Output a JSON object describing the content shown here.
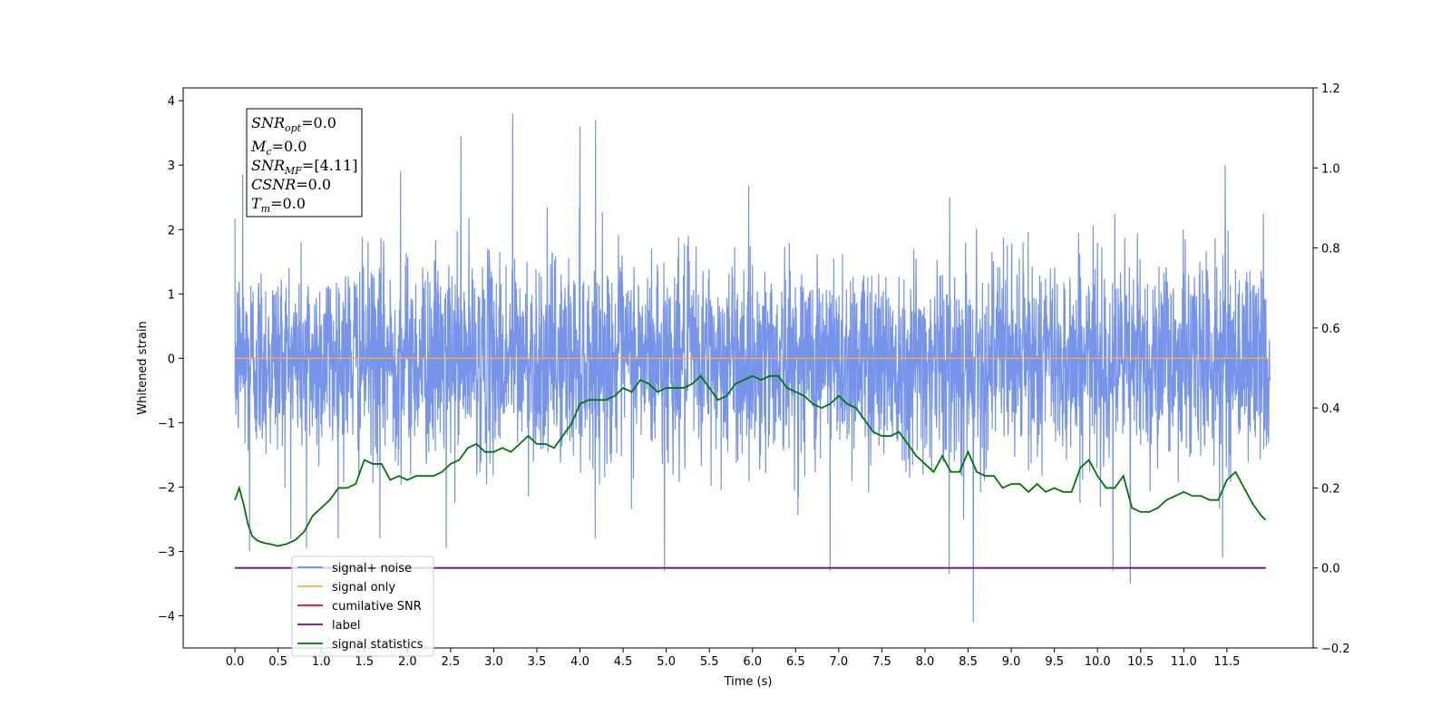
{
  "chart_data": {
    "type": "line",
    "xlabel": "Time (s)",
    "ylabel": "Whitened strain",
    "xlim": [
      -0.6,
      12.5
    ],
    "ylim": [
      -4.5,
      4.2
    ],
    "y2lim": [
      -0.2,
      1.2
    ],
    "xticks": [
      0.0,
      0.5,
      1.0,
      1.5,
      2.0,
      2.5,
      3.0,
      3.5,
      4.0,
      4.5,
      5.0,
      5.5,
      6.0,
      6.5,
      7.0,
      7.5,
      8.0,
      8.5,
      9.0,
      9.5,
      10.0,
      10.5,
      11.0,
      11.5
    ],
    "xtick_labels": [
      "0.0",
      "0.5",
      "1.0",
      "1.5",
      "2.0",
      "2.5",
      "3.0",
      "3.5",
      "4.0",
      "4.5",
      "5.0",
      "5.5",
      "6.0",
      "6.5",
      "7.0",
      "7.5",
      "8.0",
      "8.5",
      "9.0",
      "9.5",
      "10.0",
      "10.5",
      "11.0",
      "11.5"
    ],
    "yticks": [
      -4,
      -3,
      -2,
      -1,
      0,
      1,
      2,
      3,
      4
    ],
    "ytick_labels": [
      "−4",
      "−3",
      "−2",
      "−1",
      "0",
      "1",
      "2",
      "3",
      "4"
    ],
    "y2ticks": [
      -0.2,
      0.0,
      0.2,
      0.4,
      0.6,
      0.8,
      1.0,
      1.2
    ],
    "y2tick_labels": [
      "−0.2",
      "0.0",
      "0.2",
      "0.4",
      "0.6",
      "0.8",
      "1.0",
      "1.2"
    ],
    "noise": {
      "x_range": [
        0.0,
        12.0
      ],
      "sigma": 1.0,
      "peaks": [
        [
          0.09,
          2.85
        ],
        [
          1.92,
          2.9
        ],
        [
          3.22,
          3.8
        ],
        [
          4.18,
          3.7
        ],
        [
          4.0,
          3.6
        ],
        [
          2.62,
          3.45
        ],
        [
          11.48,
          3.0
        ],
        [
          8.56,
          -4.1
        ],
        [
          10.38,
          -3.5
        ],
        [
          10.18,
          -3.3
        ],
        [
          8.28,
          -3.35
        ],
        [
          6.9,
          -3.3
        ],
        [
          4.98,
          -3.3
        ],
        [
          0.17,
          -3.0
        ],
        [
          0.83,
          -2.95
        ],
        [
          11.45,
          -3.1
        ],
        [
          1.68,
          -2.8
        ],
        [
          2.45,
          -2.95
        ]
      ]
    },
    "series": [
      {
        "name": "signal+ noise",
        "axis": "left",
        "color": "#6f8ee8",
        "kind": "noise"
      },
      {
        "name": "signal only",
        "axis": "left",
        "color": "#ffae42",
        "x": [
          0.0,
          12.0
        ],
        "y": [
          0.0,
          0.0
        ]
      },
      {
        "name": "cumilative SNR",
        "axis": "right",
        "color": "#ff0000",
        "x": [],
        "y": []
      },
      {
        "name": "label",
        "axis": "right",
        "color": "#7a0a7a",
        "x": [
          0.0,
          11.95
        ],
        "y": [
          0.0,
          0.0
        ]
      },
      {
        "name": "signal statistics",
        "axis": "right",
        "color": "#007700",
        "x": [
          0.0,
          0.05,
          0.1,
          0.15,
          0.2,
          0.25,
          0.3,
          0.35,
          0.4,
          0.5,
          0.6,
          0.7,
          0.8,
          0.85,
          0.9,
          1.0,
          1.1,
          1.2,
          1.3,
          1.4,
          1.5,
          1.6,
          1.7,
          1.8,
          1.9,
          2.0,
          2.1,
          2.2,
          2.3,
          2.4,
          2.5,
          2.6,
          2.7,
          2.8,
          2.9,
          3.0,
          3.1,
          3.2,
          3.3,
          3.4,
          3.5,
          3.6,
          3.7,
          3.8,
          3.9,
          4.0,
          4.1,
          4.2,
          4.3,
          4.4,
          4.5,
          4.6,
          4.7,
          4.8,
          4.9,
          5.0,
          5.1,
          5.2,
          5.3,
          5.4,
          5.5,
          5.6,
          5.7,
          5.8,
          5.9,
          6.0,
          6.1,
          6.2,
          6.3,
          6.4,
          6.5,
          6.6,
          6.7,
          6.8,
          6.9,
          7.0,
          7.1,
          7.2,
          7.3,
          7.4,
          7.5,
          7.6,
          7.7,
          7.8,
          7.9,
          8.0,
          8.1,
          8.2,
          8.3,
          8.4,
          8.5,
          8.6,
          8.7,
          8.8,
          8.9,
          9.0,
          9.1,
          9.2,
          9.3,
          9.4,
          9.5,
          9.6,
          9.7,
          9.8,
          9.9,
          10.0,
          10.1,
          10.2,
          10.3,
          10.4,
          10.5,
          10.6,
          10.7,
          10.8,
          10.9,
          11.0,
          11.1,
          11.2,
          11.3,
          11.4,
          11.5,
          11.6,
          11.7,
          11.8,
          11.9,
          11.95
        ],
        "y": [
          0.17,
          0.2,
          0.16,
          0.11,
          0.08,
          0.07,
          0.065,
          0.062,
          0.06,
          0.055,
          0.06,
          0.07,
          0.09,
          0.11,
          0.13,
          0.15,
          0.17,
          0.2,
          0.2,
          0.21,
          0.27,
          0.26,
          0.26,
          0.22,
          0.23,
          0.22,
          0.23,
          0.23,
          0.23,
          0.24,
          0.26,
          0.27,
          0.3,
          0.31,
          0.29,
          0.29,
          0.3,
          0.29,
          0.31,
          0.33,
          0.31,
          0.31,
          0.3,
          0.33,
          0.36,
          0.41,
          0.42,
          0.42,
          0.42,
          0.43,
          0.45,
          0.44,
          0.47,
          0.46,
          0.44,
          0.45,
          0.45,
          0.45,
          0.46,
          0.48,
          0.45,
          0.42,
          0.43,
          0.46,
          0.47,
          0.48,
          0.47,
          0.48,
          0.48,
          0.45,
          0.44,
          0.43,
          0.41,
          0.4,
          0.41,
          0.43,
          0.41,
          0.4,
          0.37,
          0.34,
          0.33,
          0.33,
          0.34,
          0.31,
          0.28,
          0.26,
          0.24,
          0.28,
          0.24,
          0.24,
          0.29,
          0.24,
          0.23,
          0.23,
          0.2,
          0.21,
          0.21,
          0.19,
          0.21,
          0.19,
          0.2,
          0.19,
          0.19,
          0.25,
          0.27,
          0.23,
          0.2,
          0.2,
          0.23,
          0.15,
          0.14,
          0.14,
          0.15,
          0.17,
          0.18,
          0.19,
          0.18,
          0.18,
          0.17,
          0.17,
          0.22,
          0.24,
          0.2,
          0.16,
          0.13,
          0.12
        ]
      }
    ],
    "legend": {
      "placement": "lower-left",
      "entries": [
        "signal+ noise",
        "signal only",
        "cumilative SNR",
        "label",
        "signal statistics"
      ]
    },
    "annotation_lines": [
      "SNR_opt=0.0",
      "M_c=0.0",
      "SNR_MF=[4.11]",
      "CSNR=0.0",
      "T_m=0.0"
    ]
  }
}
